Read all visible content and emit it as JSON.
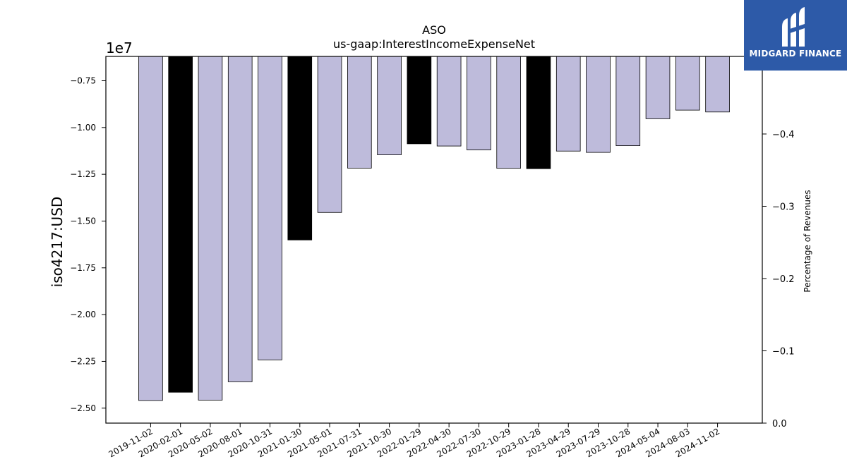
{
  "chart_data": {
    "type": "bar",
    "title": "ASO",
    "subtitle": "us-gaap:InterestIncomeExpenseNet",
    "ylabel": "iso4217:USD",
    "y2label": "Percentage of Revenues",
    "y_offset_label": "1e7",
    "categories": [
      "2019-11-02",
      "2020-02-01",
      "2020-05-02",
      "2020-08-01",
      "2020-10-31",
      "2021-01-30",
      "2021-05-01",
      "2021-07-31",
      "2021-10-30",
      "2022-01-29",
      "2022-04-30",
      "2022-07-30",
      "2022-10-29",
      "2023-01-28",
      "2023-04-29",
      "2023-07-29",
      "2023-10-28",
      "2024-05-04",
      "2024-08-03",
      "2024-11-02"
    ],
    "values": [
      -24590000,
      -24150000,
      -24570000,
      -23590000,
      -22420000,
      -16010000,
      -14540000,
      -12170000,
      -11460000,
      -10870000,
      -10990000,
      -11200000,
      -12180000,
      -12200000,
      -11260000,
      -11330000,
      -10970000,
      -9530000,
      -9070000,
      -9170000
    ],
    "highlight": [
      false,
      true,
      false,
      false,
      false,
      true,
      false,
      false,
      false,
      true,
      false,
      false,
      false,
      true,
      false,
      false,
      false,
      false,
      false,
      false
    ],
    "ylim": [
      -25800000,
      -6200000
    ],
    "yticks": [
      -25000000,
      -22500000,
      -20000000,
      -17500000,
      -15000000,
      -12500000,
      -10000000,
      -7500000
    ],
    "ytick_labels": [
      "−2.50",
      "−2.25",
      "−2.00",
      "−1.75",
      "−1.50",
      "−1.25",
      "−1.00",
      "−0.75"
    ],
    "y2lim": [
      0,
      -0.5073
    ],
    "y2ticks": [
      0,
      -0.1,
      -0.2,
      -0.3,
      -0.4
    ],
    "y2tick_labels": [
      "0.0",
      "−0.1",
      "−0.2",
      "−0.3",
      "−0.4"
    ],
    "colors": {
      "bar": "#bebbdb",
      "highlight": "#000000"
    },
    "grid": false,
    "legend": "none"
  },
  "logo": {
    "text": "MIDGARD FINANCE"
  }
}
